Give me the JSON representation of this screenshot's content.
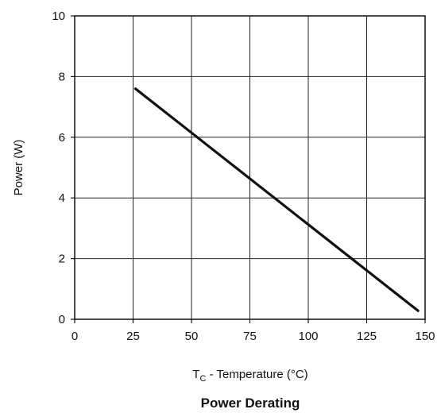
{
  "chart_data": {
    "type": "line",
    "title": "Power Derating",
    "xlabel": {
      "main": "T",
      "subscript": "C",
      "rest": " - Temperature (°C)"
    },
    "ylabel": "Power (W)",
    "xlim": [
      0,
      150
    ],
    "ylim": [
      0,
      10
    ],
    "xticks": [
      0,
      25,
      50,
      75,
      100,
      125,
      150
    ],
    "yticks": [
      0,
      2,
      4,
      6,
      8,
      10
    ],
    "xtick_labels": [
      "0",
      "25",
      "50",
      "75",
      "100",
      "125",
      "150"
    ],
    "ytick_labels": [
      "0",
      "2",
      "4",
      "6",
      "8",
      "10"
    ],
    "grid": true,
    "series": [
      {
        "x": [
          26,
          147
        ],
        "y": [
          7.6,
          0.28
        ]
      }
    ]
  },
  "colors": {
    "line": "#111111",
    "grid": "#222222",
    "frame": "#111111"
  }
}
